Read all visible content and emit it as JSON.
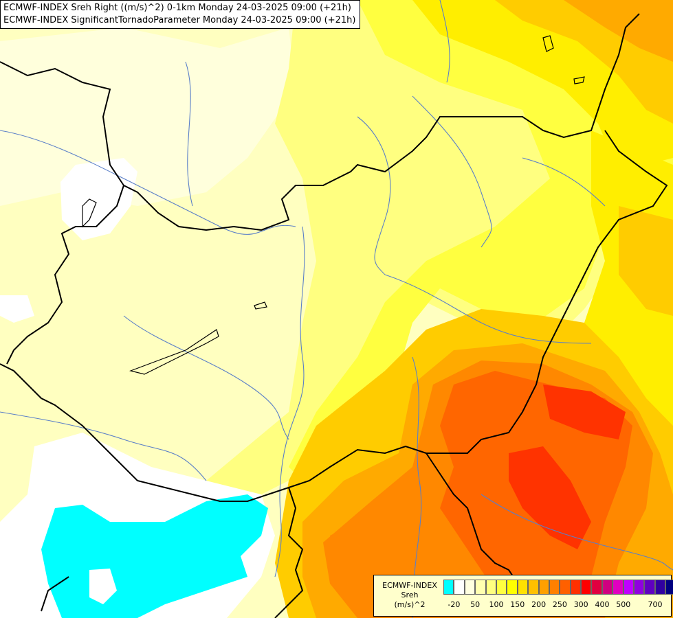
{
  "title": {
    "line1": "ECMWF-INDEX Sreh Right ((m/s)^2) 0-1km Monday 24-03-2025 09:00 (+21h)",
    "line2": "ECMWF-INDEX SignificantTornadoParameter Monday 24-03-2025 09:00 (+21h)"
  },
  "legend": {
    "label_line1": "ECMWF-INDEX",
    "label_line2": "Sreh",
    "label_line3": "(m/s)^2",
    "colors": [
      "#00ffff",
      "#ffffff",
      "#ffffe0",
      "#ffffb0",
      "#ffff80",
      "#ffff40",
      "#ffff00",
      "#ffe000",
      "#ffc000",
      "#ffa000",
      "#ff8000",
      "#ff6000",
      "#ff3000",
      "#ff0000",
      "#e00040",
      "#d00080",
      "#e000c0",
      "#c000ff",
      "#9000e0",
      "#6000c0",
      "#3000a0",
      "#000080"
    ],
    "ticks": [
      "-20",
      "50",
      "100",
      "150",
      "200",
      "250",
      "300",
      "400",
      "500",
      "700"
    ]
  },
  "map": {
    "fill_colors": {
      "base": "#ffffc0",
      "light": "#ffffdc",
      "white": "#ffffff",
      "cyan": "#00ffff",
      "yellow1": "#ffff80",
      "yellow2": "#ffff40",
      "yellow3": "#ffee00",
      "gold": "#ffcc00",
      "orange1": "#ffaa00",
      "orange2": "#ff8800",
      "orange3": "#ff6600",
      "red1": "#ff3300"
    },
    "border_color": "#000000",
    "river_color": "#5a7fc8"
  }
}
